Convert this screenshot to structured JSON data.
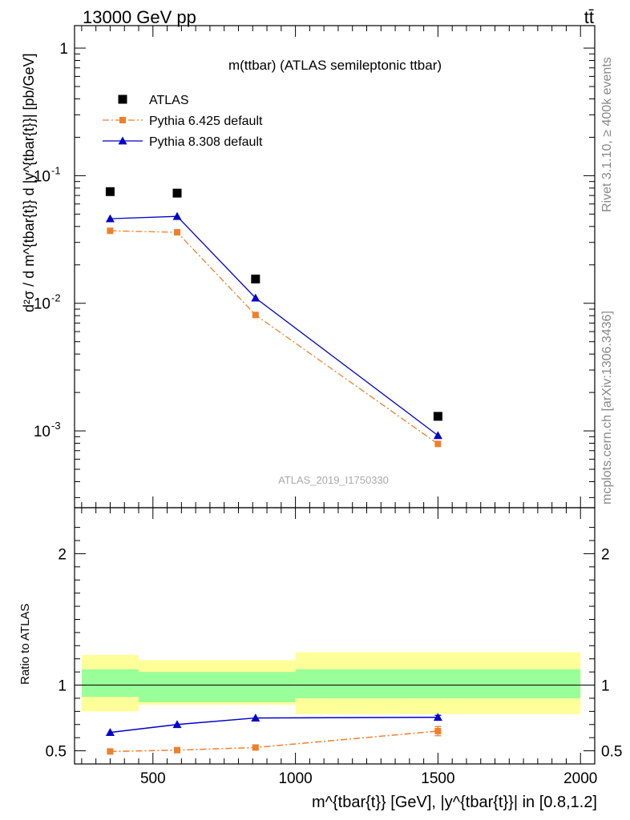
{
  "header": {
    "left": "13000 GeV pp",
    "right": "tt̄"
  },
  "side": {
    "rivet": "Rivet 3.1.10, ≥ 400k events",
    "mcplots": "mcplots.cern.ch [arXiv:1306.3436]"
  },
  "chart_data": [
    {
      "type": "scatter",
      "title": "m(ttbar) (ATLAS semileptonic ttbar)",
      "watermark": "ATLAS_2019_I1750330",
      "ylabel": "d²σ / d m^{tbar{t}} d |y^{tbar{t}}| [pb/GeV]",
      "yscale": "log",
      "ylim": [
        0.00025,
        1.5
      ],
      "xlim": [
        225,
        2050
      ],
      "y_ticks": [
        {
          "v": 1,
          "label": "1"
        },
        {
          "v": 0.1,
          "label": "10^{-1}"
        },
        {
          "v": 0.01,
          "label": "10^{-2}"
        },
        {
          "v": 0.001,
          "label": "10^{-3}"
        }
      ],
      "legend_position": "top-left",
      "series": [
        {
          "name": "ATLAS",
          "style": "data",
          "color": "#000000",
          "x": [
            350,
            585,
            860,
            1500
          ],
          "y": [
            0.075,
            0.073,
            0.0155,
            0.0013
          ]
        },
        {
          "name": "Pythia 6.425 default",
          "style": "dashdot",
          "color": "#f07f2a",
          "x": [
            350,
            585,
            860,
            1500
          ],
          "y": [
            0.037,
            0.036,
            0.0081,
            0.00079
          ]
        },
        {
          "name": "Pythia 8.308 default",
          "style": "solid",
          "color": "#0000cc",
          "x": [
            350,
            585,
            860,
            1500
          ],
          "y": [
            0.046,
            0.048,
            0.011,
            0.00092
          ]
        }
      ]
    },
    {
      "type": "line",
      "ylabel": "Ratio to ATLAS",
      "xlabel": "m^{tbar{t}} [GeV], |y^{tbar{t}}| in [0.8,1.2]",
      "xlim": [
        225,
        2050
      ],
      "ylim": [
        0.4,
        2.35
      ],
      "x_ticks": [
        500,
        1000,
        1500,
        2000
      ],
      "y_ticks": [
        {
          "v": 0.5,
          "label": "0.5"
        },
        {
          "v": 1,
          "label": "1"
        },
        {
          "v": 2,
          "label": "2"
        }
      ],
      "bands": [
        {
          "x0": 250,
          "x1": 450,
          "yellow": [
            0.8,
            1.23
          ],
          "green": [
            0.91,
            1.12
          ]
        },
        {
          "x0": 450,
          "x1": 1000,
          "yellow": [
            0.85,
            1.19
          ],
          "green": [
            0.87,
            1.1
          ]
        },
        {
          "x0": 1000,
          "x1": 2000,
          "yellow": [
            0.78,
            1.25
          ],
          "green": [
            0.9,
            1.12
          ]
        }
      ],
      "series": [
        {
          "name": "Pythia 6.425 default",
          "color": "#f07f2a",
          "style": "dashdot",
          "x": [
            350,
            585,
            860,
            1500
          ],
          "y": [
            0.495,
            0.505,
            0.525,
            0.65
          ],
          "err": [
            0,
            0,
            0.02,
            0.035
          ]
        },
        {
          "name": "Pythia 8.308 default",
          "color": "#0000cc",
          "style": "solid",
          "x": [
            350,
            585,
            860,
            1500
          ],
          "y": [
            0.64,
            0.7,
            0.75,
            0.755
          ],
          "err": [
            0,
            0,
            0,
            0.015
          ]
        }
      ]
    }
  ]
}
